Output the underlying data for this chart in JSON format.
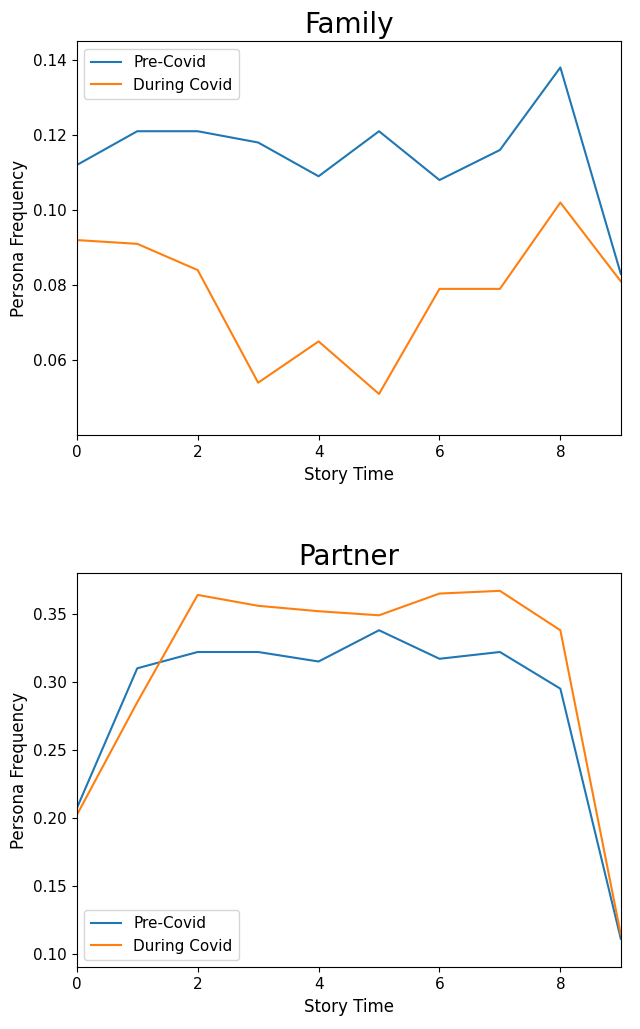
{
  "family": {
    "pre_covid": [
      0.112,
      0.121,
      0.121,
      0.118,
      0.109,
      0.121,
      0.108,
      0.116,
      0.138,
      0.083
    ],
    "during_covid": [
      0.092,
      0.091,
      0.084,
      0.054,
      0.065,
      0.051,
      0.079,
      0.079,
      0.102,
      0.081
    ],
    "title": "Family",
    "ylim": [
      0.04,
      0.145
    ],
    "yticks": [
      0.06,
      0.08,
      0.1,
      0.12,
      0.14
    ],
    "legend_loc": "upper left"
  },
  "partner": {
    "pre_covid": [
      0.207,
      0.31,
      0.322,
      0.322,
      0.315,
      0.338,
      0.317,
      0.322,
      0.295,
      0.111
    ],
    "during_covid": [
      0.202,
      0.285,
      0.364,
      0.356,
      0.352,
      0.349,
      0.365,
      0.367,
      0.338,
      0.114
    ],
    "title": "Partner",
    "ylim": [
      0.09,
      0.38
    ],
    "yticks": [
      0.1,
      0.15,
      0.2,
      0.25,
      0.3,
      0.35
    ],
    "legend_loc": "lower left"
  },
  "x": [
    0,
    1,
    2,
    3,
    4,
    5,
    6,
    7,
    8,
    9
  ],
  "xlabel": "Story Time",
  "ylabel": "Persona Frequency",
  "pre_covid_color": "#1f77b4",
  "during_covid_color": "#ff7f0e",
  "pre_covid_label": "Pre-Covid",
  "during_covid_label": "During Covid",
  "title_fontsize": 20,
  "label_fontsize": 12,
  "legend_fontsize": 11,
  "tick_fontsize": 11,
  "figsize": [
    6.4,
    10.29
  ],
  "dpi": 100
}
